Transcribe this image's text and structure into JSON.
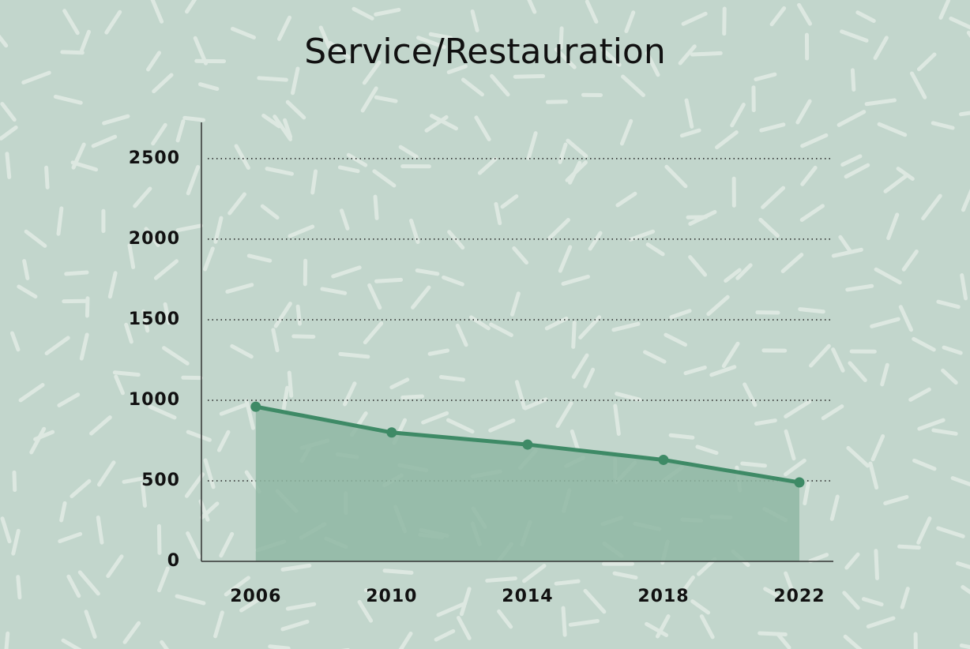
{
  "chart_data": {
    "type": "area",
    "title": "Service/Restauration",
    "x": [
      2006,
      2010,
      2014,
      2018,
      2022
    ],
    "values": [
      960,
      800,
      725,
      630,
      490
    ],
    "color": "#3e8a66",
    "fill": "#8fb7a3",
    "xlim": [
      2004.4,
      2023
    ],
    "xticks": [
      2006,
      2010,
      2014,
      2018,
      2022
    ],
    "ylim": [
      0,
      2725
    ],
    "yticks": [
      0,
      500,
      1000,
      1500,
      2000,
      2500
    ],
    "grid": true
  }
}
